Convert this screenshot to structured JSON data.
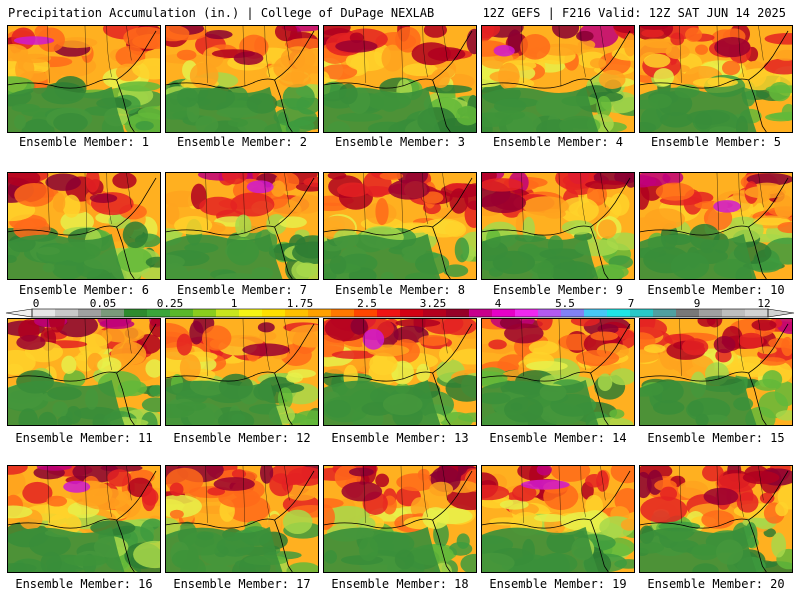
{
  "header": {
    "left": "Precipitation Accumulation (in.) | College of DuPage NEXLAB",
    "right": "12Z GEFS | F216 Valid: 12Z SAT JUN 14 2025"
  },
  "panels": [
    {
      "label": "Ensemble Member: 1"
    },
    {
      "label": "Ensemble Member: 2"
    },
    {
      "label": "Ensemble Member: 3"
    },
    {
      "label": "Ensemble Member: 4"
    },
    {
      "label": "Ensemble Member: 5"
    },
    {
      "label": "Ensemble Member: 6"
    },
    {
      "label": "Ensemble Member: 7"
    },
    {
      "label": "Ensemble Member: 8"
    },
    {
      "label": "Ensemble Member: 9"
    },
    {
      "label": "Ensemble Member: 10"
    },
    {
      "label": "Ensemble Member: 11"
    },
    {
      "label": "Ensemble Member: 12"
    },
    {
      "label": "Ensemble Member: 13"
    },
    {
      "label": "Ensemble Member: 14"
    },
    {
      "label": "Ensemble Member: 15"
    },
    {
      "label": "Ensemble Member: 16"
    },
    {
      "label": "Ensemble Member: 17"
    },
    {
      "label": "Ensemble Member: 18"
    },
    {
      "label": "Ensemble Member: 19"
    },
    {
      "label": "Ensemble Member: 20"
    }
  ],
  "colorbar": {
    "labels": [
      "0",
      "0.05",
      "0.25",
      "1",
      "1.75",
      "2.5",
      "3.25",
      "4",
      "5.5",
      "7",
      "9",
      "12"
    ],
    "colors": [
      "#e6e6e6",
      "#c8c8c8",
      "#a0a0a0",
      "#7a9a7a",
      "#2e8b2e",
      "#3aa53a",
      "#5ab82a",
      "#8acd1e",
      "#c8e61e",
      "#f5f514",
      "#ffe000",
      "#ffc000",
      "#ffa000",
      "#ff7800",
      "#ff4600",
      "#f01414",
      "#d20014",
      "#b4001e",
      "#960028",
      "#c8008c",
      "#e600c8",
      "#f028f0",
      "#b45af0",
      "#8282f5",
      "#46c8f5",
      "#1ee6e6",
      "#28c8c8",
      "#50a0a0",
      "#787878",
      "#a0a0a0",
      "#bebebe",
      "#d2d2d2"
    ]
  }
}
